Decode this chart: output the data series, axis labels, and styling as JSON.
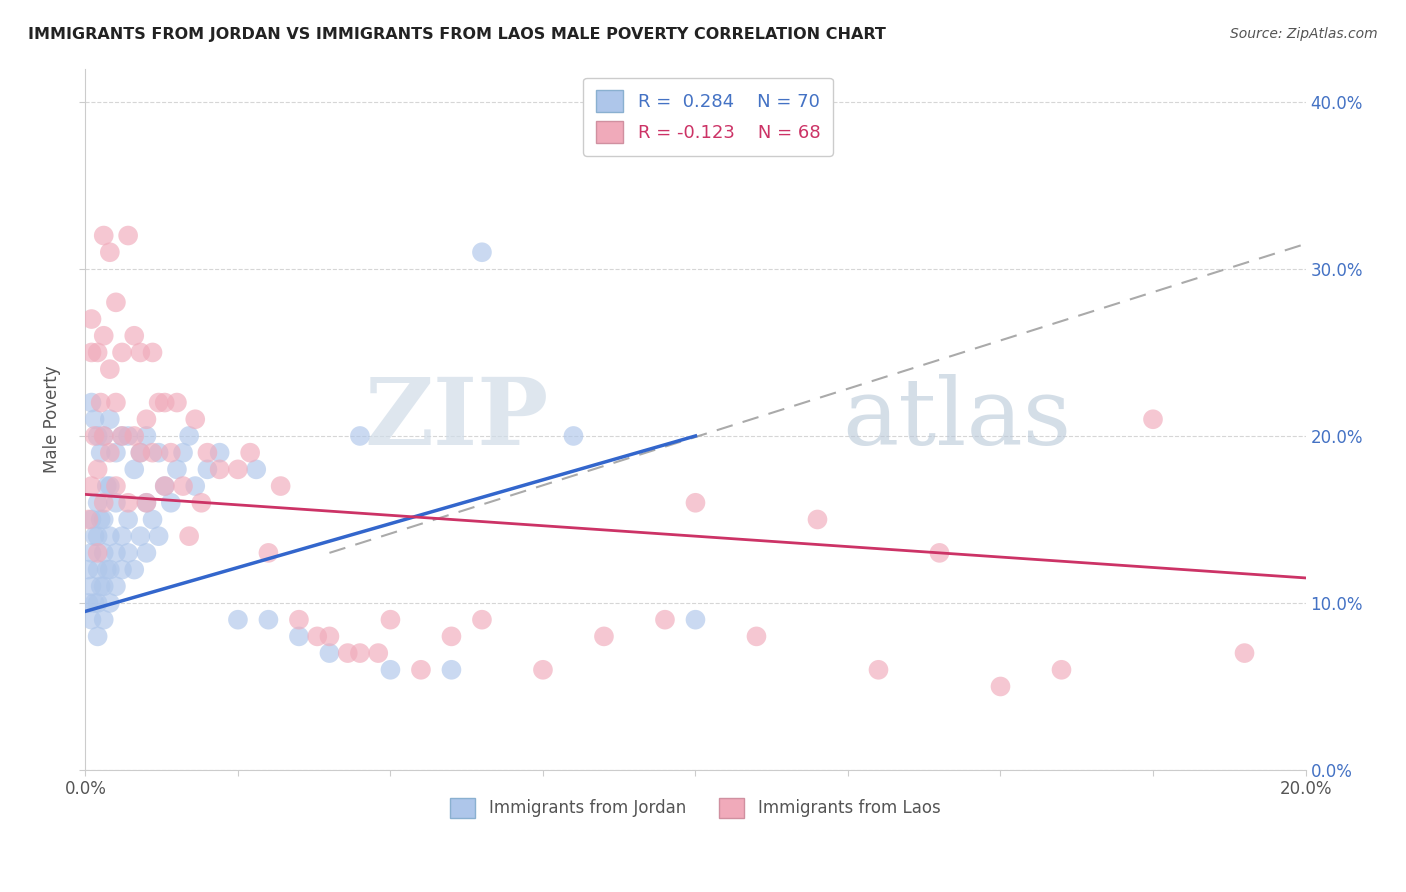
{
  "title": "IMMIGRANTS FROM JORDAN VS IMMIGRANTS FROM LAOS MALE POVERTY CORRELATION CHART",
  "source": "Source: ZipAtlas.com",
  "ylabel": "Male Poverty",
  "xlim": [
    0.0,
    0.2
  ],
  "ylim": [
    0.0,
    0.42
  ],
  "xticks": [
    0.0,
    0.025,
    0.05,
    0.075,
    0.1,
    0.125,
    0.15,
    0.175,
    0.2
  ],
  "yticks": [
    0.0,
    0.1,
    0.2,
    0.3,
    0.4
  ],
  "jordan_color": "#aec6ea",
  "laos_color": "#f0aaba",
  "jordan_line_color": "#3366cc",
  "laos_line_color": "#cc3366",
  "dash_line_color": "#aaaaaa",
  "watermark_zip": "ZIP",
  "watermark_atlas": "atlas",
  "jordan_x": [
    0.0005,
    0.0005,
    0.001,
    0.001,
    0.001,
    0.001,
    0.001,
    0.0015,
    0.0015,
    0.0015,
    0.002,
    0.002,
    0.002,
    0.002,
    0.002,
    0.002,
    0.0025,
    0.0025,
    0.0025,
    0.003,
    0.003,
    0.003,
    0.003,
    0.003,
    0.0035,
    0.0035,
    0.004,
    0.004,
    0.004,
    0.004,
    0.004,
    0.005,
    0.005,
    0.005,
    0.005,
    0.006,
    0.006,
    0.006,
    0.007,
    0.007,
    0.007,
    0.008,
    0.008,
    0.009,
    0.009,
    0.01,
    0.01,
    0.01,
    0.011,
    0.012,
    0.012,
    0.013,
    0.014,
    0.015,
    0.016,
    0.017,
    0.018,
    0.02,
    0.022,
    0.025,
    0.028,
    0.03,
    0.035,
    0.04,
    0.045,
    0.05,
    0.06,
    0.065,
    0.08,
    0.1
  ],
  "jordan_y": [
    0.1,
    0.12,
    0.09,
    0.11,
    0.13,
    0.15,
    0.22,
    0.1,
    0.14,
    0.21,
    0.08,
    0.1,
    0.12,
    0.14,
    0.16,
    0.2,
    0.11,
    0.15,
    0.19,
    0.09,
    0.11,
    0.13,
    0.15,
    0.2,
    0.12,
    0.17,
    0.1,
    0.12,
    0.14,
    0.17,
    0.21,
    0.11,
    0.13,
    0.16,
    0.19,
    0.12,
    0.14,
    0.2,
    0.13,
    0.15,
    0.2,
    0.12,
    0.18,
    0.14,
    0.19,
    0.13,
    0.16,
    0.2,
    0.15,
    0.14,
    0.19,
    0.17,
    0.16,
    0.18,
    0.19,
    0.2,
    0.17,
    0.18,
    0.19,
    0.09,
    0.18,
    0.09,
    0.08,
    0.07,
    0.2,
    0.06,
    0.06,
    0.31,
    0.2,
    0.09
  ],
  "laos_x": [
    0.0005,
    0.001,
    0.001,
    0.001,
    0.0015,
    0.002,
    0.002,
    0.002,
    0.0025,
    0.003,
    0.003,
    0.003,
    0.003,
    0.004,
    0.004,
    0.004,
    0.005,
    0.005,
    0.005,
    0.006,
    0.006,
    0.007,
    0.007,
    0.008,
    0.008,
    0.009,
    0.009,
    0.01,
    0.01,
    0.011,
    0.011,
    0.012,
    0.013,
    0.013,
    0.014,
    0.015,
    0.016,
    0.017,
    0.018,
    0.019,
    0.02,
    0.022,
    0.025,
    0.027,
    0.03,
    0.032,
    0.035,
    0.038,
    0.04,
    0.043,
    0.045,
    0.048,
    0.05,
    0.055,
    0.06,
    0.065,
    0.075,
    0.085,
    0.095,
    0.1,
    0.11,
    0.12,
    0.13,
    0.14,
    0.15,
    0.16,
    0.175,
    0.19
  ],
  "laos_y": [
    0.15,
    0.25,
    0.27,
    0.17,
    0.2,
    0.18,
    0.25,
    0.13,
    0.22,
    0.16,
    0.26,
    0.2,
    0.32,
    0.24,
    0.19,
    0.31,
    0.22,
    0.17,
    0.28,
    0.25,
    0.2,
    0.32,
    0.16,
    0.26,
    0.2,
    0.25,
    0.19,
    0.21,
    0.16,
    0.25,
    0.19,
    0.22,
    0.17,
    0.22,
    0.19,
    0.22,
    0.17,
    0.14,
    0.21,
    0.16,
    0.19,
    0.18,
    0.18,
    0.19,
    0.13,
    0.17,
    0.09,
    0.08,
    0.08,
    0.07,
    0.07,
    0.07,
    0.09,
    0.06,
    0.08,
    0.09,
    0.06,
    0.08,
    0.09,
    0.16,
    0.08,
    0.15,
    0.06,
    0.13,
    0.05,
    0.06,
    0.21,
    0.07
  ],
  "jordan_trend_x": [
    0.0,
    0.1
  ],
  "jordan_trend_y": [
    0.095,
    0.2
  ],
  "laos_trend_x": [
    0.0,
    0.2
  ],
  "laos_trend_y": [
    0.165,
    0.115
  ],
  "dash_trend_x": [
    0.04,
    0.2
  ],
  "dash_trend_y": [
    0.13,
    0.315
  ]
}
